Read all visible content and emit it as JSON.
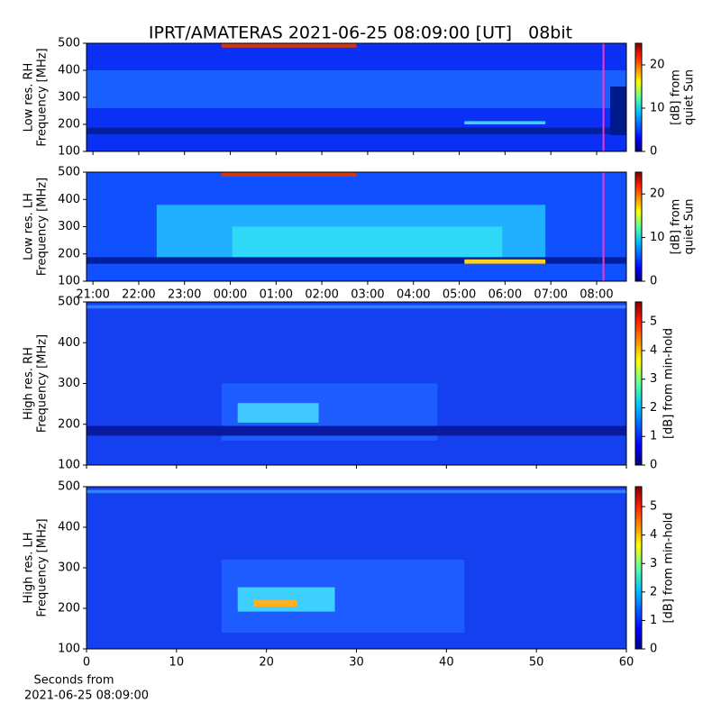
{
  "title": "IPRT/AMATERAS 2021-06-25 08:09:00 [UT]   08bit",
  "xlabel": [
    "Seconds from",
    "2021-06-25 08:09:00"
  ],
  "chart_data": [
    {
      "type": "heatmap",
      "ylabel": [
        "Low res. RH",
        "Frequency [MHz]"
      ],
      "ylim": [
        100,
        500
      ],
      "yticks": [
        100,
        200,
        300,
        400,
        500
      ],
      "xlim": [
        20.86,
        32.65
      ],
      "xticks": [
        21,
        22,
        23,
        24,
        25,
        26,
        27,
        28,
        29,
        30,
        31,
        32
      ],
      "xtick_labels": false,
      "marker_x": 32.15,
      "marker_color": "#ff33cc",
      "colorbar": {
        "label": [
          "[dB] from",
          "quiet Sun"
        ],
        "lim": [
          0,
          25
        ],
        "ticks": [
          0,
          10,
          20
        ]
      }
    },
    {
      "type": "heatmap",
      "ylabel": [
        "Low res. LH",
        "Frequency [MHz]"
      ],
      "ylim": [
        100,
        500
      ],
      "yticks": [
        100,
        200,
        300,
        400,
        500
      ],
      "xlim": [
        20.86,
        32.65
      ],
      "xticks": [
        {
          "value": 21,
          "label": "21:00"
        },
        {
          "value": 22,
          "label": "22:00"
        },
        {
          "value": 23,
          "label": "23:00"
        },
        {
          "value": 24,
          "label": "00:00"
        },
        {
          "value": 25,
          "label": "01:00"
        },
        {
          "value": 26,
          "label": "02:00"
        },
        {
          "value": 27,
          "label": "03:00"
        },
        {
          "value": 28,
          "label": "04:00"
        },
        {
          "value": 29,
          "label": "05:00"
        },
        {
          "value": 30,
          "label": "06:00"
        },
        {
          "value": 31,
          "label": "07:00"
        },
        {
          "value": 32,
          "label": "08:00"
        }
      ],
      "xtick_labels": true,
      "marker_x": 32.15,
      "marker_color": "#ff33cc",
      "colorbar": {
        "label": [
          "[dB] from",
          "quiet Sun"
        ],
        "lim": [
          0,
          25
        ],
        "ticks": [
          0,
          10,
          20
        ]
      }
    },
    {
      "type": "heatmap",
      "ylabel": [
        "High res. RH",
        "Frequency [MHz]"
      ],
      "ylim": [
        100,
        500
      ],
      "yticks": [
        100,
        200,
        300,
        400,
        500
      ],
      "xlim": [
        0,
        60
      ],
      "xticks": [
        0,
        10,
        20,
        30,
        40,
        50,
        60
      ],
      "xtick_labels": false,
      "colorbar": {
        "label": [
          "[dB] from min-hold"
        ],
        "lim": [
          0,
          5.7
        ],
        "ticks": [
          0,
          1,
          2,
          3,
          4,
          5
        ]
      }
    },
    {
      "type": "heatmap",
      "ylabel": [
        "High res. LH",
        "Frequency [MHz]"
      ],
      "ylim": [
        100,
        500
      ],
      "yticks": [
        100,
        200,
        300,
        400,
        500
      ],
      "xlim": [
        0,
        60
      ],
      "xticks": [
        0,
        10,
        20,
        30,
        40,
        50,
        60
      ],
      "xtick_labels": true,
      "colorbar": {
        "label": [
          "[dB] from min-hold"
        ],
        "lim": [
          0,
          5.7
        ],
        "ticks": [
          0,
          1,
          2,
          3,
          4,
          5
        ]
      }
    }
  ]
}
